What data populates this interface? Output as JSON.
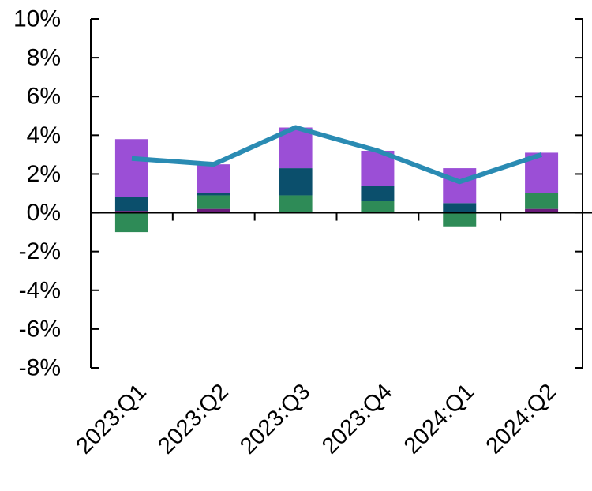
{
  "chart_data": {
    "type": "bar",
    "stacked": true,
    "title": "",
    "xlabel": "",
    "ylabel": "",
    "categories": [
      "2023:Q1",
      "2023:Q2",
      "2023:Q3",
      "2023:Q4",
      "2024:Q1",
      "2024:Q2"
    ],
    "ylim": [
      -8,
      10
    ],
    "y_ticks": [
      10,
      8,
      6,
      4,
      2,
      0,
      -2,
      -4,
      -6,
      -8
    ],
    "y_tick_labels": [
      "10%",
      "8%",
      "6%",
      "4%",
      "2%",
      "0%",
      "-2%",
      "-4%",
      "-6%",
      "-8%"
    ],
    "grid": false,
    "legend": "none",
    "series": [
      {
        "kind": "bar",
        "color": "#6a1b7a",
        "values": [
          0.1,
          0.2,
          0.0,
          0.0,
          0.0,
          0.2
        ]
      },
      {
        "kind": "bar",
        "color": "#2e8b57",
        "values": [
          -1.0,
          0.7,
          0.9,
          0.6,
          -0.7,
          0.8
        ]
      },
      {
        "kind": "bar",
        "color": "#0b4f6c",
        "values": [
          0.7,
          0.1,
          1.4,
          0.8,
          0.5,
          0.0
        ]
      },
      {
        "kind": "bar",
        "color": "#9b4fd6",
        "values": [
          3.0,
          1.5,
          2.1,
          1.8,
          1.8,
          2.1
        ]
      },
      {
        "kind": "line",
        "color": "#2a8bb3",
        "values": [
          2.8,
          2.5,
          4.4,
          3.2,
          1.6,
          3.0
        ]
      }
    ]
  }
}
